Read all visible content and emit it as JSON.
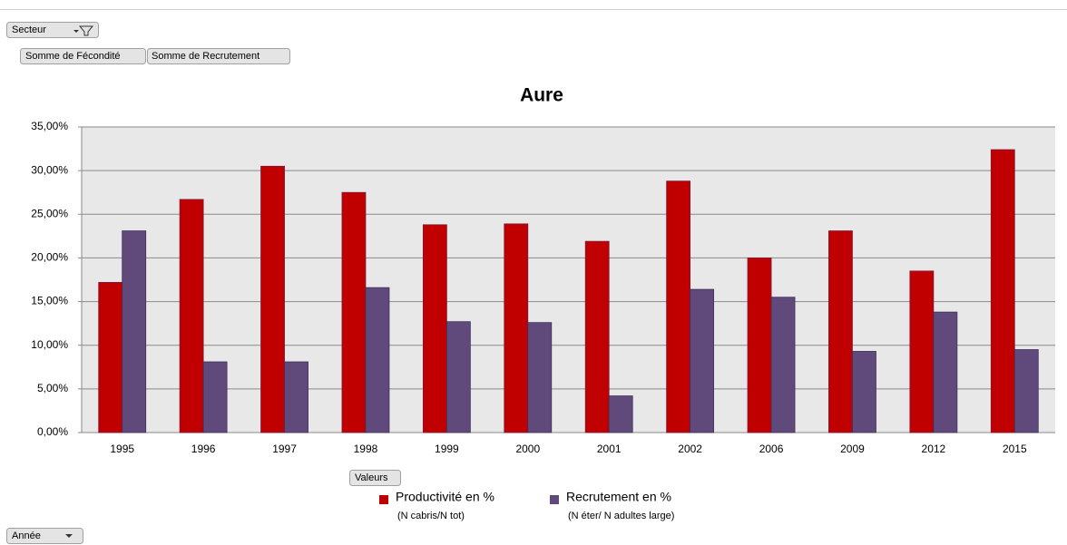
{
  "ui": {
    "filter_button": "Secteur",
    "value_buttons": [
      "Somme de Fécondité",
      "Somme de Recrutement"
    ],
    "legend_button": "Valeurs",
    "axis_button": "Année"
  },
  "chart_data": {
    "type": "bar",
    "title": "Aure",
    "categories": [
      "1995",
      "1996",
      "1997",
      "1998",
      "1999",
      "2000",
      "2001",
      "2002",
      "2006",
      "2009",
      "2012",
      "2015"
    ],
    "series": [
      {
        "name": "Productivité en %",
        "note": "(N cabris/N tot)",
        "color": "#c00000",
        "values": [
          17.2,
          26.7,
          30.5,
          27.5,
          23.8,
          23.9,
          21.9,
          28.8,
          20.0,
          23.1,
          18.5,
          32.4
        ]
      },
      {
        "name": "Recrutement en %",
        "note": "(N éter/ N adultes large)",
        "color": "#604a7b",
        "values": [
          23.1,
          8.1,
          8.1,
          16.6,
          12.7,
          12.6,
          4.2,
          16.4,
          15.5,
          9.3,
          13.8,
          9.5
        ]
      }
    ],
    "ylim": [
      0,
      35
    ],
    "yticks": [
      {
        "value": 0,
        "label": "0,00%"
      },
      {
        "value": 5,
        "label": "5,00%"
      },
      {
        "value": 10,
        "label": "10,00%"
      },
      {
        "value": 15,
        "label": "15,00%"
      },
      {
        "value": 20,
        "label": "20,00%"
      },
      {
        "value": 25,
        "label": "25,00%"
      },
      {
        "value": 30,
        "label": "30,00%"
      },
      {
        "value": 35,
        "label": "35,00%"
      }
    ],
    "grid": true,
    "legend": "bottom"
  }
}
